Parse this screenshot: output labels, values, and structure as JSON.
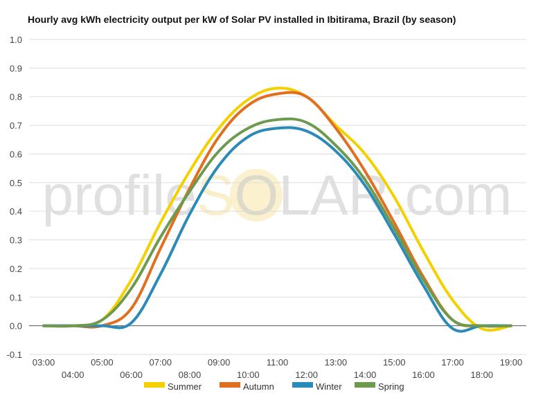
{
  "chart_data": {
    "type": "line",
    "title": "Hourly avg kWh electricity output per kW of Solar PV installed in Ibitirama, Brazil (by season)",
    "watermark": {
      "left_text": "profile",
      "sun_letter": "S",
      "right_text": "OLAR.com"
    },
    "x": [
      3,
      4,
      5,
      6,
      7,
      8,
      9,
      10,
      11,
      12,
      13,
      14,
      15,
      16,
      17,
      18,
      19
    ],
    "x_tick_labels": [
      "03:00",
      "04:00",
      "05:00",
      "06:00",
      "07:00",
      "08:00",
      "09:00",
      "10:00",
      "11:00",
      "12:00",
      "13:00",
      "14:00",
      "15:00",
      "16:00",
      "17:00",
      "18:00",
      "19:00"
    ],
    "ylim": [
      -0.1,
      1.0
    ],
    "y_ticks": [
      -0.1,
      0.0,
      0.1,
      0.2,
      0.3,
      0.4,
      0.5,
      0.6,
      0.7,
      0.8,
      0.9,
      1.0
    ],
    "y_tick_labels": [
      "-0.1",
      "0.0",
      "0.1",
      "0.2",
      "0.3",
      "0.4",
      "0.5",
      "0.6",
      "0.7",
      "0.8",
      "0.9",
      "1.0"
    ],
    "grid": true,
    "legend_position": "bottom",
    "series": [
      {
        "name": "Summer",
        "color": "#f5d000",
        "values": [
          0.0,
          0.0,
          0.02,
          0.16,
          0.36,
          0.54,
          0.69,
          0.79,
          0.83,
          0.8,
          0.7,
          0.6,
          0.45,
          0.26,
          0.09,
          -0.01,
          0.0
        ]
      },
      {
        "name": "Autumn",
        "color": "#e07020",
        "values": [
          0.0,
          0.0,
          0.0,
          0.06,
          0.27,
          0.48,
          0.66,
          0.77,
          0.81,
          0.8,
          0.69,
          0.54,
          0.36,
          0.17,
          0.02,
          0.0,
          0.0
        ]
      },
      {
        "name": "Winter",
        "color": "#2a8ab8",
        "values": [
          0.0,
          0.0,
          0.0,
          0.01,
          0.18,
          0.39,
          0.56,
          0.66,
          0.69,
          0.68,
          0.61,
          0.49,
          0.32,
          0.14,
          -0.01,
          0.0,
          0.0
        ]
      },
      {
        "name": "Spring",
        "color": "#6e9a50",
        "values": [
          0.0,
          0.0,
          0.02,
          0.13,
          0.31,
          0.47,
          0.61,
          0.69,
          0.72,
          0.71,
          0.63,
          0.51,
          0.34,
          0.16,
          0.02,
          0.0,
          0.0
        ]
      }
    ]
  }
}
